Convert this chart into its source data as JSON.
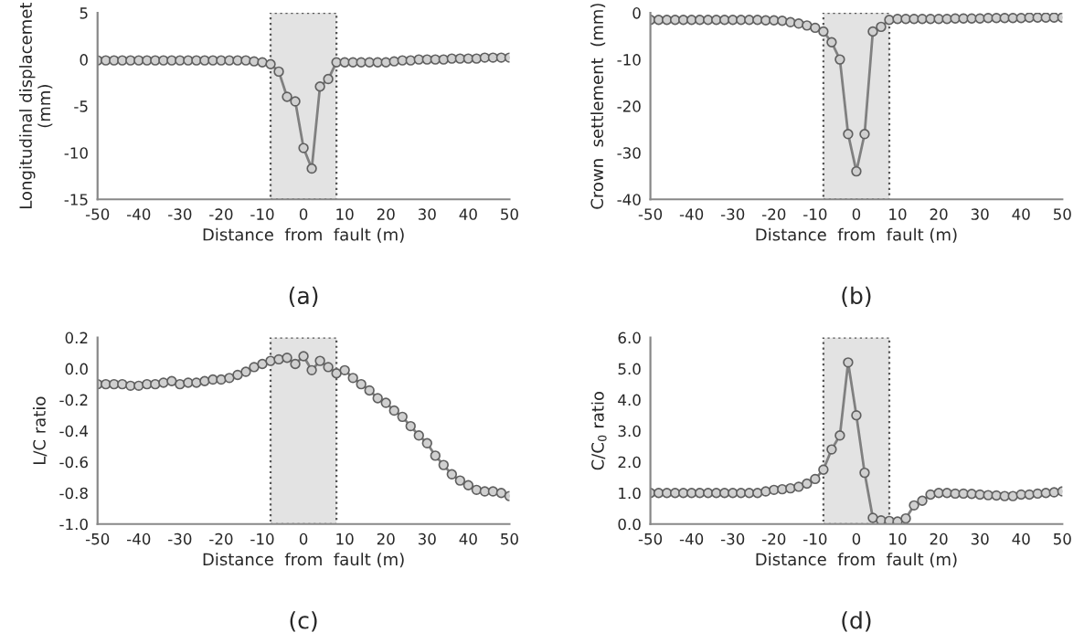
{
  "chart_data": [
    {
      "type": "line",
      "xlabel": "Distance  from  fault (m)",
      "ylabel": "Longitudinal displacemet\n(mm)",
      "annotations": [
        "(a)"
      ],
      "marker": "circle",
      "line_style": "solid",
      "grid": false,
      "xlim": [
        -50,
        50
      ],
      "xticks": [
        -50,
        -40,
        -30,
        -20,
        -10,
        0,
        10,
        20,
        30,
        40,
        50
      ],
      "ylim": [
        -15,
        5
      ],
      "yticks": [
        -15,
        -10,
        -5,
        0,
        5
      ],
      "x": [
        -50,
        -48,
        -46,
        -44,
        -42,
        -40,
        -38,
        -36,
        -34,
        -32,
        -30,
        -28,
        -26,
        -24,
        -22,
        -20,
        -18,
        -16,
        -14,
        -12,
        -10,
        -8,
        -6,
        -4,
        -2,
        0,
        2,
        4,
        6,
        8,
        10,
        12,
        14,
        16,
        18,
        20,
        22,
        24,
        26,
        28,
        30,
        32,
        34,
        36,
        38,
        40,
        42,
        44,
        46,
        48,
        50
      ],
      "bands": [
        {
          "axis": "x",
          "from": -8,
          "to": 8,
          "color": "#e3e3e3"
        }
      ],
      "series": [
        {
          "color": "#808080",
          "values": [
            -0.1,
            -0.1,
            -0.1,
            -0.1,
            -0.1,
            -0.1,
            -0.1,
            -0.1,
            -0.1,
            -0.1,
            -0.1,
            -0.1,
            -0.1,
            -0.1,
            -0.1,
            -0.1,
            -0.1,
            -0.1,
            -0.1,
            -0.2,
            -0.3,
            -0.5,
            -1.3,
            -4.0,
            -4.5,
            -9.5,
            -11.7,
            -2.9,
            -2.1,
            -0.3,
            -0.3,
            -0.3,
            -0.3,
            -0.3,
            -0.3,
            -0.3,
            -0.2,
            -0.1,
            -0.1,
            0.0,
            0.0,
            0.0,
            0.0,
            0.1,
            0.1,
            0.1,
            0.1,
            0.2,
            0.2,
            0.2,
            0.2
          ]
        }
      ]
    },
    {
      "type": "line",
      "xlabel": "Distance  from  fault (m)",
      "ylabel": "Crown  settlement  (mm)",
      "annotations": [
        "(b)"
      ],
      "marker": "circle",
      "line_style": "solid",
      "grid": false,
      "xlim": [
        -50,
        50
      ],
      "xticks": [
        -50,
        -40,
        -30,
        -20,
        -10,
        0,
        10,
        20,
        30,
        40,
        50
      ],
      "ylim": [
        -40,
        0
      ],
      "yticks": [
        -40,
        -30,
        -20,
        -10,
        0
      ],
      "x": [
        -50,
        -48,
        -46,
        -44,
        -42,
        -40,
        -38,
        -36,
        -34,
        -32,
        -30,
        -28,
        -26,
        -24,
        -22,
        -20,
        -18,
        -16,
        -14,
        -12,
        -10,
        -8,
        -6,
        -4,
        -2,
        0,
        2,
        4,
        6,
        8,
        10,
        12,
        14,
        16,
        18,
        20,
        22,
        24,
        26,
        28,
        30,
        32,
        34,
        36,
        38,
        40,
        42,
        44,
        46,
        48,
        50
      ],
      "bands": [
        {
          "axis": "x",
          "from": -8,
          "to": 8,
          "color": "#e3e3e3"
        }
      ],
      "series": [
        {
          "color": "#808080",
          "values": [
            -1.5,
            -1.5,
            -1.5,
            -1.5,
            -1.5,
            -1.5,
            -1.5,
            -1.5,
            -1.5,
            -1.5,
            -1.5,
            -1.5,
            -1.5,
            -1.5,
            -1.6,
            -1.6,
            -1.7,
            -2.0,
            -2.3,
            -2.7,
            -3.2,
            -4.0,
            -6.3,
            -10.0,
            -26.0,
            -34.0,
            -26.0,
            -4.0,
            -3.0,
            -1.5,
            -1.3,
            -1.3,
            -1.3,
            -1.3,
            -1.3,
            -1.3,
            -1.3,
            -1.2,
            -1.2,
            -1.2,
            -1.2,
            -1.1,
            -1.1,
            -1.1,
            -1.1,
            -1.1,
            -1.0,
            -1.0,
            -1.0,
            -1.0,
            -1.0
          ]
        }
      ]
    },
    {
      "type": "line",
      "xlabel": "Distance  from  fault (m)",
      "ylabel": "L/C ratio",
      "annotations": [
        "(c)"
      ],
      "marker": "circle",
      "line_style": "solid",
      "grid": false,
      "xlim": [
        -50,
        50
      ],
      "xticks": [
        -50,
        -40,
        -30,
        -20,
        -10,
        0,
        10,
        20,
        30,
        40,
        50
      ],
      "ylim": [
        -1.0,
        0.2
      ],
      "yticks": [
        {
          "value": -1.0,
          "label": "-1.0"
        },
        -0.8,
        -0.6,
        -0.4,
        -0.2,
        {
          "value": 0.0,
          "label": "0.0"
        },
        0.2
      ],
      "x": [
        -50,
        -48,
        -46,
        -44,
        -42,
        -40,
        -38,
        -36,
        -34,
        -32,
        -30,
        -28,
        -26,
        -24,
        -22,
        -20,
        -18,
        -16,
        -14,
        -12,
        -10,
        -8,
        -6,
        -4,
        -2,
        0,
        2,
        4,
        6,
        8,
        10,
        12,
        14,
        16,
        18,
        20,
        22,
        24,
        26,
        28,
        30,
        32,
        34,
        36,
        38,
        40,
        42,
        44,
        46,
        48,
        50
      ],
      "bands": [
        {
          "axis": "x",
          "from": -8,
          "to": 8,
          "color": "#e3e3e3"
        }
      ],
      "series": [
        {
          "color": "#808080",
          "values": [
            -0.1,
            -0.1,
            -0.1,
            -0.1,
            -0.11,
            -0.11,
            -0.1,
            -0.1,
            -0.09,
            -0.08,
            -0.1,
            -0.09,
            -0.09,
            -0.08,
            -0.07,
            -0.07,
            -0.06,
            -0.04,
            -0.02,
            0.01,
            0.03,
            0.05,
            0.06,
            0.07,
            0.03,
            0.08,
            -0.01,
            0.05,
            0.01,
            -0.03,
            -0.01,
            -0.06,
            -0.1,
            -0.14,
            -0.19,
            -0.22,
            -0.27,
            -0.31,
            -0.37,
            -0.43,
            -0.48,
            -0.56,
            -0.62,
            -0.68,
            -0.72,
            -0.75,
            -0.78,
            -0.79,
            -0.79,
            -0.8,
            -0.82
          ]
        }
      ]
    },
    {
      "type": "line",
      "xlabel": "Distance  from  fault (m)",
      "ylabel": "C/C$_{0}$ ratio",
      "annotations": [
        "(d)"
      ],
      "marker": "circle",
      "line_style": "solid",
      "grid": false,
      "xlim": [
        -50,
        50
      ],
      "xticks": [
        -50,
        -40,
        -30,
        -20,
        -10,
        0,
        10,
        20,
        30,
        40,
        50
      ],
      "ylim": [
        0.0,
        6.0
      ],
      "yticks": [
        {
          "value": 0.0,
          "label": "0.0"
        },
        {
          "value": 1.0,
          "label": "1.0"
        },
        {
          "value": 2.0,
          "label": "2.0"
        },
        {
          "value": 3.0,
          "label": "3.0"
        },
        {
          "value": 4.0,
          "label": "4.0"
        },
        {
          "value": 5.0,
          "label": "5.0"
        },
        {
          "value": 6.0,
          "label": "6.0"
        }
      ],
      "x": [
        -50,
        -48,
        -46,
        -44,
        -42,
        -40,
        -38,
        -36,
        -34,
        -32,
        -30,
        -28,
        -26,
        -24,
        -22,
        -20,
        -18,
        -16,
        -14,
        -12,
        -10,
        -8,
        -6,
        -4,
        -2,
        0,
        2,
        4,
        6,
        8,
        10,
        12,
        14,
        16,
        18,
        20,
        22,
        24,
        26,
        28,
        30,
        32,
        34,
        36,
        38,
        40,
        42,
        44,
        46,
        48,
        50
      ],
      "bands": [
        {
          "axis": "x",
          "from": -8,
          "to": 8,
          "color": "#e3e3e3"
        }
      ],
      "series": [
        {
          "color": "#808080",
          "values": [
            1.0,
            1.0,
            1.0,
            1.0,
            1.0,
            1.0,
            1.0,
            1.0,
            1.0,
            1.0,
            1.0,
            1.0,
            1.0,
            1.0,
            1.05,
            1.1,
            1.12,
            1.15,
            1.2,
            1.3,
            1.45,
            1.75,
            2.4,
            2.85,
            5.2,
            3.5,
            1.65,
            0.2,
            0.12,
            0.1,
            0.08,
            0.18,
            0.6,
            0.75,
            0.95,
            1.0,
            1.0,
            0.98,
            0.98,
            0.97,
            0.95,
            0.93,
            0.92,
            0.9,
            0.9,
            0.95,
            0.95,
            0.98,
            1.0,
            1.02,
            1.05
          ]
        }
      ]
    }
  ]
}
